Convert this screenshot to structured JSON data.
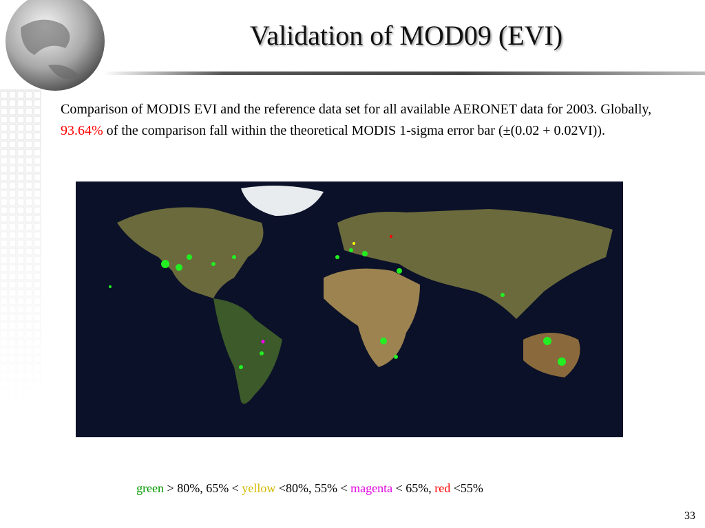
{
  "header": {
    "title": "Validation of MOD09 (EVI)"
  },
  "body": {
    "paragraph": [
      "Comparison of MODIS EVI and the reference data set for all available AERONET data for 2003. Globally, ",
      "93.64%",
      " of the comparison fall within the theoretical MODIS 1-sigma error bar (±(0.02 + 0.02VI))."
    ]
  },
  "legend": {
    "parts": [
      "green",
      " > 80%, 65% < ",
      "yellow",
      " <80%, 55% < ",
      "magenta",
      " < 65%, ",
      "red",
      " <55%"
    ]
  },
  "footer": {
    "page_number": "33"
  }
}
